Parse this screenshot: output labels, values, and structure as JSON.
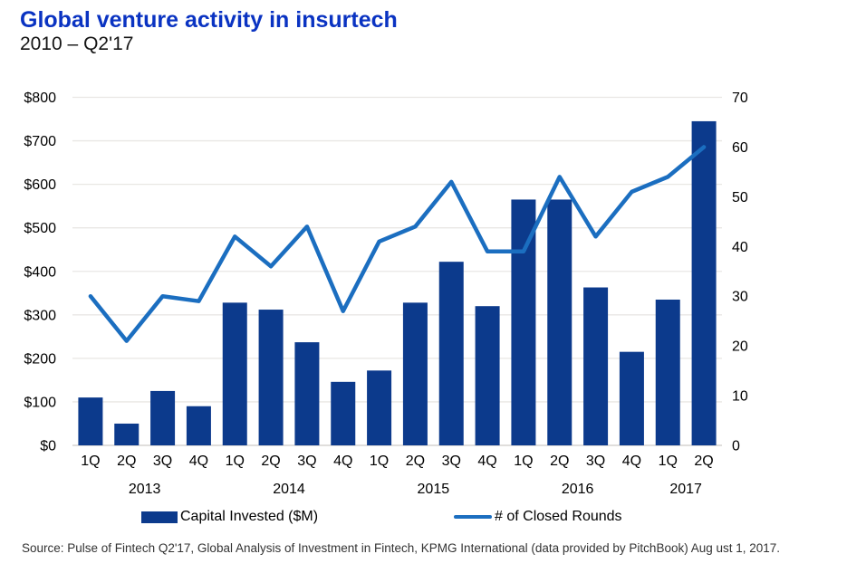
{
  "header": {
    "title": "Global venture activity in insurtech",
    "subtitle": "2010 – Q2'17"
  },
  "footer": {
    "source": "Source: Pulse of Fintech Q2'17, Global Analysis of Investment in Fintech, KPMG International (data provided by PitchBook) Aug ust 1, 2017."
  },
  "colors": {
    "title": "#0a33c2",
    "bar": "#0c3a8c",
    "line": "#1b6ec0",
    "grid": "#e9e7e4",
    "baseline": "#d5d3d0",
    "tick_text": "#000000",
    "footer_text": "#333333"
  },
  "chart_data": {
    "type": "bar+line combo",
    "title": "Global venture activity in insurtech",
    "subtitle": "2010 – Q2'17",
    "categories": [
      "1Q",
      "2Q",
      "3Q",
      "4Q",
      "1Q",
      "2Q",
      "3Q",
      "4Q",
      "1Q",
      "2Q",
      "3Q",
      "4Q",
      "1Q",
      "2Q",
      "3Q",
      "4Q",
      "1Q",
      "2Q"
    ],
    "year_groups": [
      {
        "label": "2013",
        "span": 4
      },
      {
        "label": "2014",
        "span": 4
      },
      {
        "label": "2015",
        "span": 4
      },
      {
        "label": "2016",
        "span": 4
      },
      {
        "label": "2017",
        "span": 2
      }
    ],
    "series": [
      {
        "name": "Capital Invested ($M)",
        "type": "bar",
        "axis": "left",
        "values": [
          110,
          50,
          125,
          90,
          328,
          312,
          237,
          146,
          172,
          328,
          422,
          320,
          565,
          565,
          363,
          215,
          335,
          745
        ]
      },
      {
        "name": "# of Closed Rounds",
        "type": "line",
        "axis": "right",
        "values": [
          30,
          21,
          30,
          29,
          42,
          36,
          44,
          27,
          41,
          44,
          53,
          39,
          39,
          54,
          42,
          51,
          54,
          60
        ]
      }
    ],
    "left_axis": {
      "min": 0,
      "max": 800,
      "step": 100,
      "ticks": [
        "$0",
        "$100",
        "$200",
        "$300",
        "$400",
        "$500",
        "$600",
        "$700",
        "$800"
      ]
    },
    "right_axis": {
      "min": 0,
      "max": 70,
      "step": 10,
      "ticks": [
        "0",
        "10",
        "20",
        "30",
        "40",
        "50",
        "60",
        "70"
      ]
    },
    "grid": true,
    "legend_position": "bottom"
  }
}
